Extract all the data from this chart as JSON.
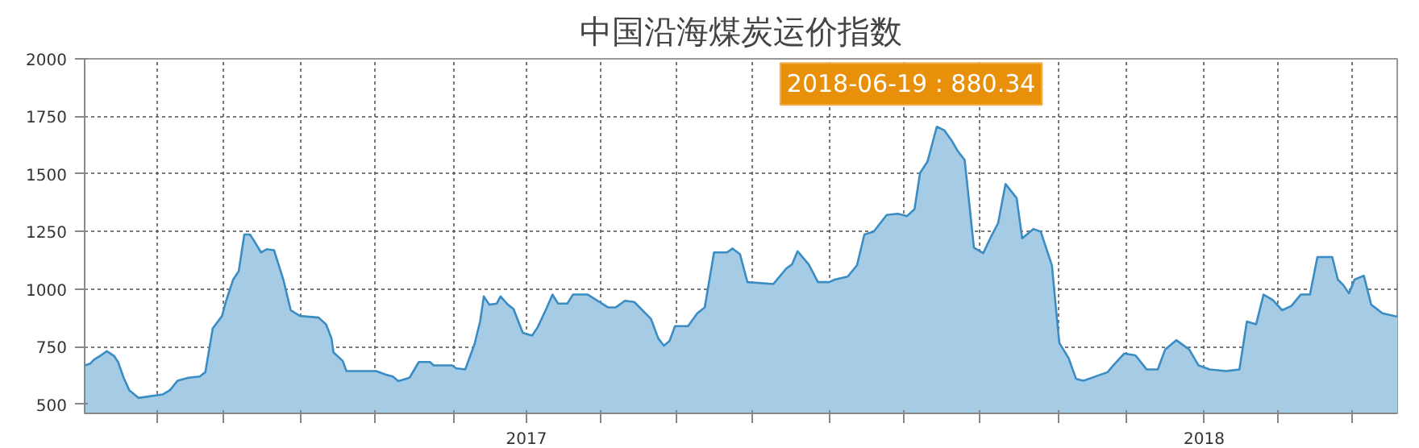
{
  "chart_data": {
    "type": "area",
    "title": "中国沿海煤炭运价指数",
    "annotations": [
      "2018-06-19 : 880.34"
    ],
    "x": [
      "2016-05-08",
      "2016-05-11",
      "2016-05-13",
      "2016-05-16",
      "2016-05-20",
      "2016-05-24",
      "2016-05-26",
      "2016-05-29",
      "2016-06-01",
      "2016-06-06",
      "2016-06-19",
      "2016-06-23",
      "2016-06-27",
      "2016-07-03",
      "2016-07-09",
      "2016-07-12",
      "2016-07-16",
      "2016-07-21",
      "2016-07-23",
      "2016-07-27",
      "2016-07-30",
      "2016-08-02",
      "2016-08-05",
      "2016-08-07",
      "2016-08-11",
      "2016-08-14",
      "2016-08-18",
      "2016-08-23",
      "2016-08-27",
      "2016-09-01",
      "2016-09-11",
      "2016-09-15",
      "2016-09-18",
      "2016-09-19",
      "2016-09-24",
      "2016-09-26",
      "2016-10-12",
      "2016-10-17",
      "2016-10-21",
      "2016-10-24",
      "2016-10-30",
      "2016-11-04",
      "2016-11-10",
      "2016-11-12",
      "2016-11-22",
      "2016-11-24",
      "2016-11-29",
      "2016-12-04",
      "2016-12-07",
      "2016-12-09",
      "2016-12-12",
      "2016-12-16",
      "2016-12-18",
      "2016-12-22",
      "2016-12-25",
      "2016-12-30",
      "2017-01-04",
      "2017-01-07",
      "2017-01-12",
      "2017-01-15",
      "2017-01-18",
      "2017-01-23",
      "2017-01-26",
      "2017-02-03",
      "2017-02-14",
      "2017-02-18",
      "2017-02-23",
      "2017-02-28",
      "2017-03-09",
      "2017-03-13",
      "2017-03-16",
      "2017-03-19",
      "2017-03-22",
      "2017-03-29",
      "2017-04-03",
      "2017-04-07",
      "2017-04-12",
      "2017-04-19",
      "2017-04-22",
      "2017-04-26",
      "2017-04-30",
      "2017-05-14",
      "2017-05-21",
      "2017-05-24",
      "2017-05-27",
      "2017-06-02",
      "2017-06-07",
      "2017-06-13",
      "2017-06-16",
      "2017-06-23",
      "2017-06-28",
      "2017-07-02",
      "2017-07-07",
      "2017-07-14",
      "2017-07-20",
      "2017-07-25",
      "2017-07-29",
      "2017-08-01",
      "2017-08-05",
      "2017-08-10",
      "2017-08-14",
      "2017-08-18",
      "2017-08-21",
      "2017-08-25",
      "2017-08-30",
      "2017-09-04",
      "2017-09-08",
      "2017-09-12",
      "2017-09-16",
      "2017-09-22",
      "2017-09-25",
      "2017-10-01",
      "2017-10-05",
      "2017-10-08",
      "2017-10-11",
      "2017-10-13",
      "2017-10-15",
      "2017-10-20",
      "2017-10-24",
      "2017-10-28",
      "2017-11-10",
      "2017-11-13",
      "2017-11-19",
      "2017-11-25",
      "2017-12-01",
      "2017-12-07",
      "2017-12-11",
      "2017-12-17",
      "2017-12-24",
      "2017-12-29",
      "2018-01-04",
      "2018-01-13",
      "2018-01-20",
      "2018-01-24",
      "2018-01-29",
      "2018-02-02",
      "2018-02-07",
      "2018-02-12",
      "2018-02-17",
      "2018-02-22",
      "2018-02-27",
      "2018-03-03",
      "2018-03-11",
      "2018-03-14",
      "2018-03-17",
      "2018-03-20",
      "2018-03-23",
      "2018-03-28",
      "2018-04-01",
      "2018-04-07",
      "2018-04-15"
    ],
    "series": [
      {
        "color": "#3a8cc4",
        "values": [
          668,
          676,
          693,
          708,
          730,
          708,
          683,
          615,
          561,
          527,
          542,
          561,
          602,
          615,
          620,
          639,
          829,
          883,
          944,
          1041,
          1078,
          1237,
          1237,
          1213,
          1159,
          1173,
          1169,
          1041,
          908,
          883,
          876,
          847,
          785,
          725,
          688,
          644,
          644,
          629,
          620,
          600,
          615,
          683,
          683,
          668,
          668,
          656,
          651,
          761,
          859,
          968,
          932,
          937,
          968,
          932,
          913,
          810,
          798,
          834,
          920,
          976,
          937,
          937,
          976,
          976,
          920,
          920,
          949,
          944,
          871,
          785,
          754,
          774,
          839,
          839,
          895,
          920,
          1159,
          1159,
          1176,
          1151,
          1030,
          1022,
          1090,
          1107,
          1164,
          1107,
          1030,
          1030,
          1041,
          1054,
          1103,
          1237,
          1249,
          1322,
          1327,
          1317,
          1347,
          1505,
          1554,
          1705,
          1690,
          1645,
          1603,
          1561,
          1180,
          1156,
          1224,
          1286,
          1456,
          1395,
          1220,
          1261,
          1249,
          1176,
          1103,
          932,
          766,
          700,
          610,
          602,
          639,
          668,
          720,
          712,
          651,
          651,
          737,
          778,
          737,
          668,
          651,
          644,
          651,
          859,
          847,
          976,
          952,
          908,
          927,
          976,
          976,
          1139,
          1139,
          1041,
          1017,
          981,
          1041,
          1058,
          932,
          895,
          880
        ]
      }
    ],
    "xlim": [
      "2016-05-08",
      "2018-04-15"
    ],
    "xticks": [
      {
        "value": "2016-06-16",
        "label": null
      },
      {
        "value": "2016-07-22",
        "label": null
      },
      {
        "value": "2016-09-01",
        "label": null
      },
      {
        "value": "2016-10-11",
        "label": null
      },
      {
        "value": "2016-11-23",
        "label": null
      },
      {
        "value": "2017-01-01",
        "label": "2017"
      },
      {
        "value": "2017-02-10",
        "label": null
      },
      {
        "value": "2017-03-23",
        "label": null
      },
      {
        "value": "2017-05-03",
        "label": null
      },
      {
        "value": "2017-06-13",
        "label": null
      },
      {
        "value": "2017-07-23",
        "label": null
      },
      {
        "value": "2017-09-02",
        "label": null
      },
      {
        "value": "2017-10-15",
        "label": null
      },
      {
        "value": "2017-11-20",
        "label": null
      },
      {
        "value": "2018-01-01",
        "label": "2018"
      },
      {
        "value": "2018-02-10",
        "label": null
      },
      {
        "value": "2018-03-22",
        "label": null
      }
    ],
    "ylim": [
      460,
      2000
    ],
    "yticks": [
      500,
      750,
      1000,
      1250,
      1500,
      1750,
      2000
    ],
    "grid": true
  }
}
